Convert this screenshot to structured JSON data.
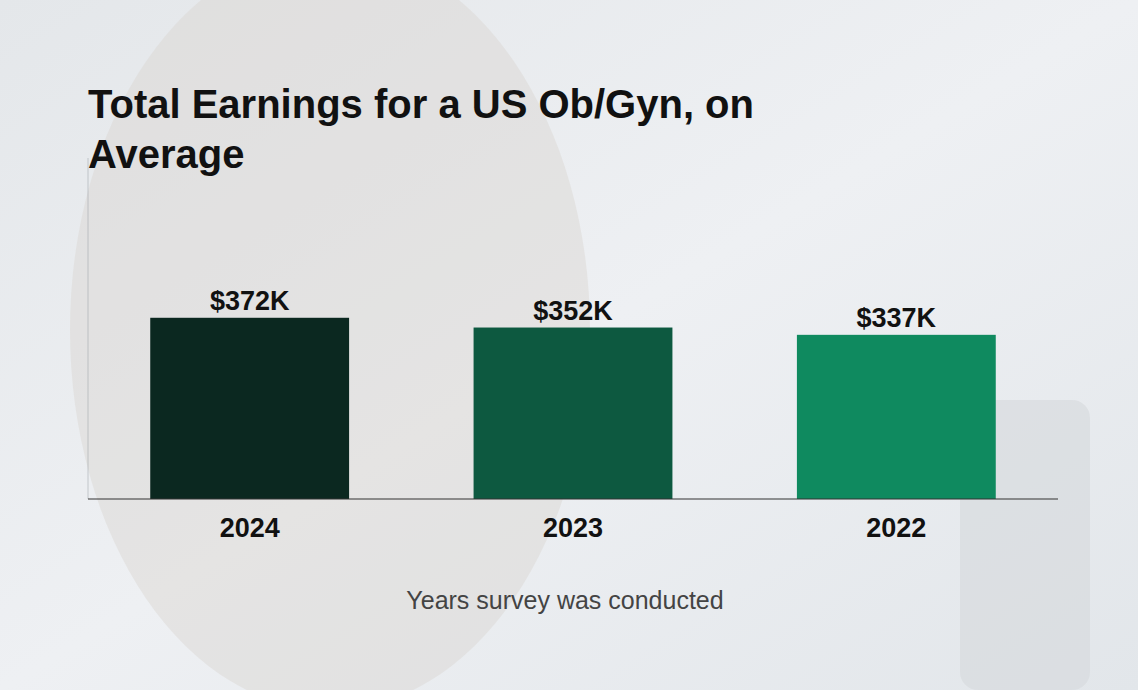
{
  "chart_data": {
    "type": "bar",
    "title": "Total Earnings for a US Ob/Gyn, on Average",
    "x_label": "Years survey was conducted",
    "categories": [
      "2024",
      "2023",
      "2022"
    ],
    "values": [
      372,
      352,
      337
    ],
    "value_labels": [
      "$372K",
      "$352K",
      "$337K"
    ],
    "colors": [
      "#0b2820",
      "#0d5940",
      "#0f8a5f"
    ],
    "ylim": [
      0,
      700
    ],
    "yticks": [],
    "data_labels": true,
    "tick_labels": "x",
    "grid": false
  }
}
